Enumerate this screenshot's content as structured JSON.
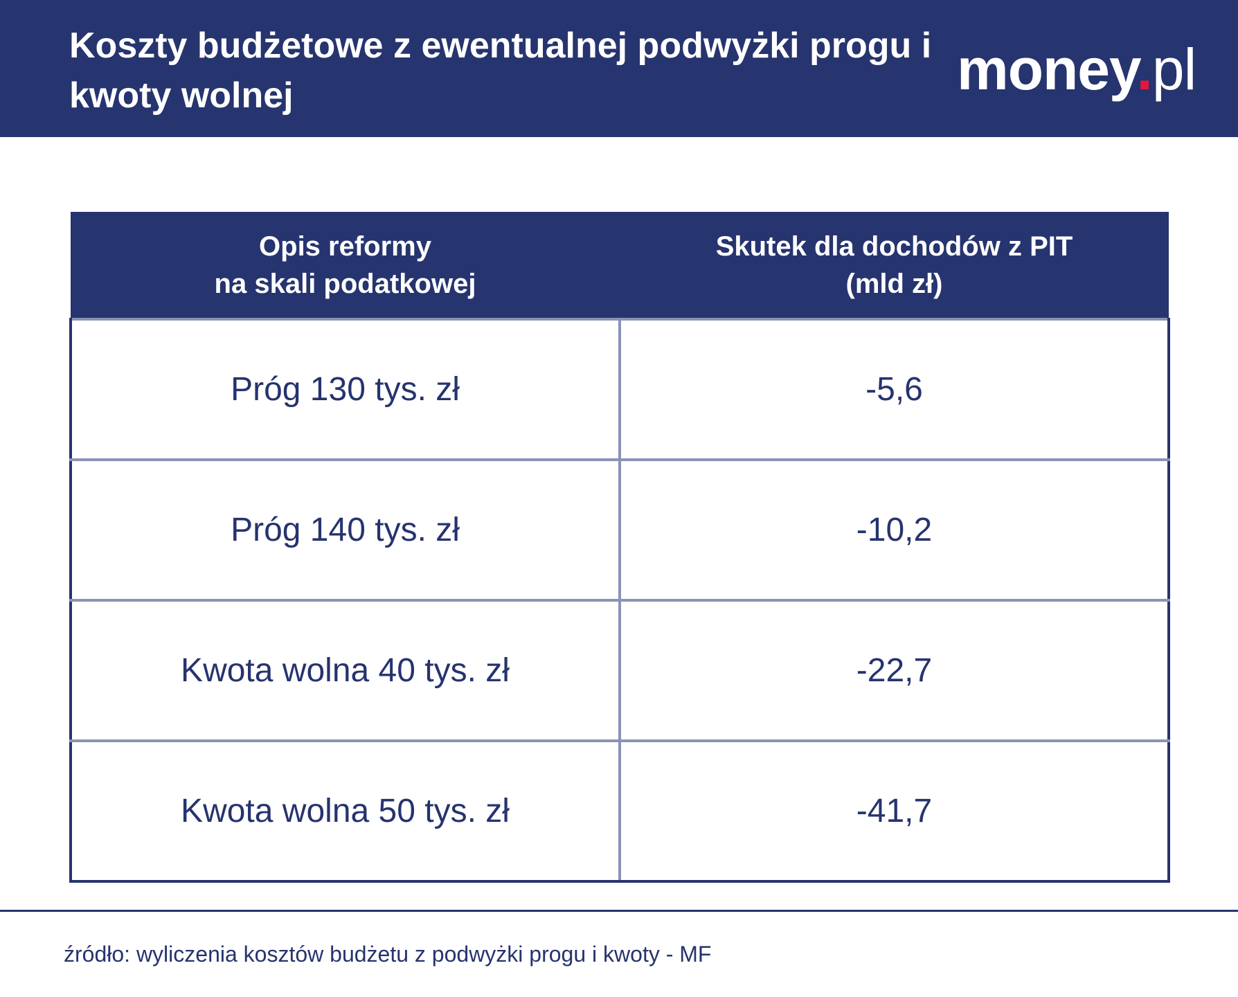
{
  "header": {
    "title": "Koszty budżetowe z ewentualnej podwyżki progu i kwoty wolnej",
    "logo": "money.pl",
    "brand_color": "#26346f",
    "accent_color": "#e3173e"
  },
  "table": {
    "columns": [
      "Opis reformy\nna skali podatkowej",
      "Skutek dla dochodów z PIT\n(mld zł)"
    ],
    "rows": [
      [
        "Próg 130 tys. zł",
        "-5,6"
      ],
      [
        "Próg 140 tys. zł",
        "-10,2"
      ],
      [
        "Kwota wolna 40 tys. zł",
        "-22,7"
      ],
      [
        "Kwota wolna 50 tys. zł",
        "-41,7"
      ]
    ]
  },
  "footer": {
    "source": "źródło: wyliczenia kosztów budżetu z podwyżki progu i kwoty - MF"
  }
}
